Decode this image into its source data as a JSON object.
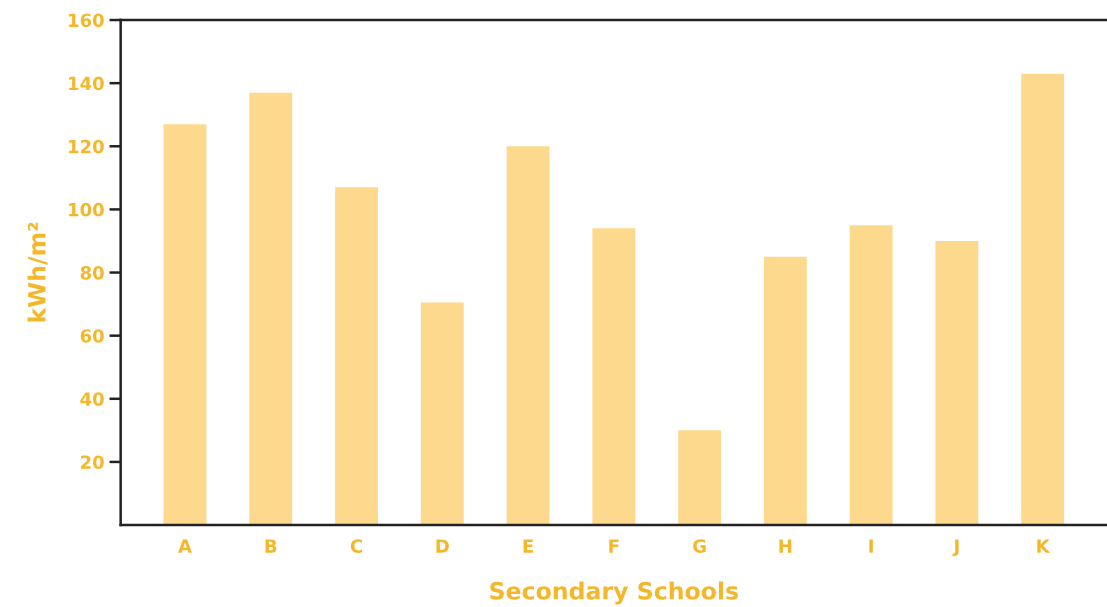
{
  "chart_data": {
    "type": "bar",
    "xlabel": "Secondary Schools",
    "ylabel": "kWh/m²",
    "categories": [
      "A",
      "B",
      "C",
      "D",
      "E",
      "F",
      "G",
      "H",
      "I",
      "J",
      "K"
    ],
    "values": [
      127,
      137,
      107,
      70.5,
      120,
      94,
      30,
      85,
      95,
      90,
      143
    ],
    "color": "#fdd98e",
    "ylim": [
      0,
      160
    ],
    "yticks": [
      20,
      40,
      60,
      80,
      100,
      120,
      140,
      160
    ],
    "grid": false,
    "legend": false
  }
}
